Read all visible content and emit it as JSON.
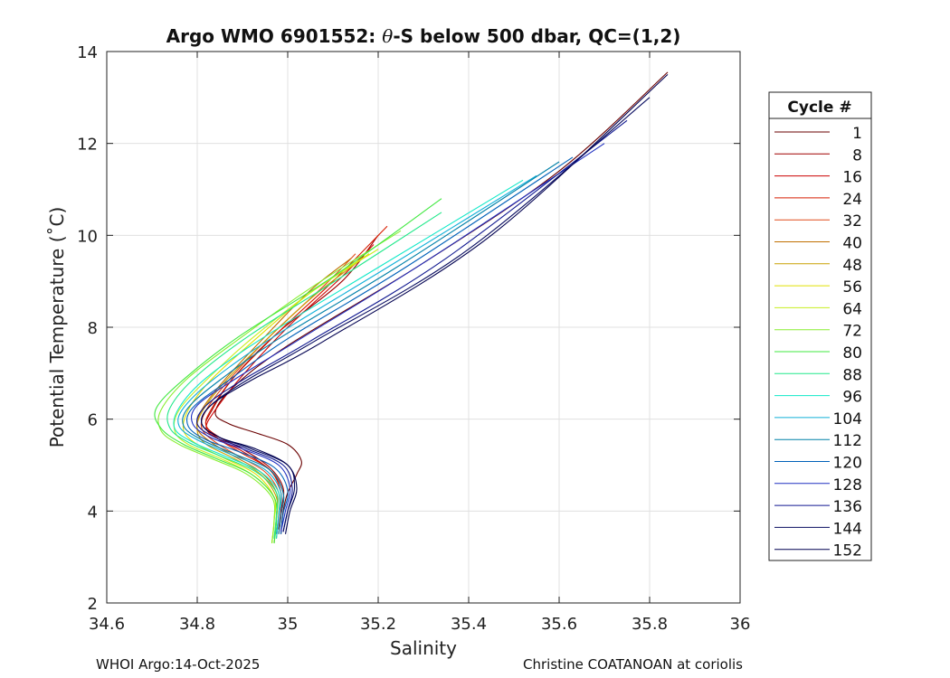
{
  "chart_data": {
    "type": "line",
    "title_prefix": "Argo WMO 6901552: ",
    "title_theta": "θ",
    "title_suffix": "-S below 500 dbar,  QC=(1,2)",
    "xlabel": "Salinity",
    "ylabel": "Potential Temperature (˚C)",
    "xlim": [
      34.6,
      36
    ],
    "ylim": [
      2,
      14
    ],
    "xticks": [
      34.6,
      34.8,
      35,
      35.2,
      35.4,
      35.6,
      35.8,
      36
    ],
    "xtick_labels": [
      "34.6",
      "34.8",
      "35",
      "35.2",
      "35.4",
      "35.6",
      "35.8",
      "36"
    ],
    "yticks": [
      2,
      4,
      6,
      8,
      10,
      12,
      14
    ],
    "ytick_labels": [
      "2",
      "4",
      "6",
      "8",
      "10",
      "12",
      "14"
    ],
    "grid": true,
    "legend_title": "Cycle #",
    "legend_position": "outside-right",
    "legend": [
      {
        "label": "1",
        "color": "#6a0000"
      },
      {
        "label": "8",
        "color": "#a00000"
      },
      {
        "label": "16",
        "color": "#cc0000"
      },
      {
        "label": "24",
        "color": "#d81c00"
      },
      {
        "label": "32",
        "color": "#e04a1a"
      },
      {
        "label": "40",
        "color": "#c07000"
      },
      {
        "label": "48",
        "color": "#c8a000"
      },
      {
        "label": "56",
        "color": "#e0e000"
      },
      {
        "label": "64",
        "color": "#c8ee20"
      },
      {
        "label": "72",
        "color": "#88ee30"
      },
      {
        "label": "80",
        "color": "#40e840"
      },
      {
        "label": "88",
        "color": "#20e88a"
      },
      {
        "label": "96",
        "color": "#10e8c8"
      },
      {
        "label": "104",
        "color": "#10b0d8"
      },
      {
        "label": "112",
        "color": "#0080a8"
      },
      {
        "label": "120",
        "color": "#0060b8"
      },
      {
        "label": "128",
        "color": "#2030c0"
      },
      {
        "label": "136",
        "color": "#101890"
      },
      {
        "label": "144",
        "color": "#080c60"
      },
      {
        "label": "152",
        "color": "#000050"
      }
    ],
    "series": [
      {
        "name": "1",
        "color": "#6a0000",
        "s": [
          34.985,
          34.99,
          35.0,
          35.02,
          35.03,
          35.0,
          34.93,
          34.87,
          34.84,
          34.88,
          35.0,
          35.3,
          35.6,
          35.84
        ],
        "t": [
          3.5,
          4.0,
          4.4,
          4.8,
          5.1,
          5.45,
          5.7,
          5.9,
          6.15,
          6.7,
          7.6,
          9.4,
          11.4,
          13.55
        ]
      },
      {
        "name": "8",
        "color": "#a00000",
        "s": [
          34.98,
          34.985,
          34.99,
          34.96,
          34.9,
          34.85,
          34.82,
          34.83,
          34.88,
          34.98,
          35.12,
          35.2
        ],
        "t": [
          3.6,
          4.0,
          4.5,
          4.95,
          5.35,
          5.6,
          5.85,
          6.15,
          6.9,
          7.9,
          9.0,
          10.0
        ]
      },
      {
        "name": "16",
        "color": "#cc0000",
        "s": [
          34.98,
          34.985,
          34.99,
          34.96,
          34.9,
          34.85,
          34.82,
          34.84,
          34.9,
          35.0,
          35.12,
          35.19
        ],
        "t": [
          3.5,
          3.9,
          4.4,
          4.9,
          5.3,
          5.55,
          5.8,
          6.2,
          6.95,
          8.0,
          9.1,
          9.8
        ]
      },
      {
        "name": "24",
        "color": "#d81c00",
        "s": [
          34.975,
          34.98,
          34.985,
          34.96,
          34.9,
          34.85,
          34.82,
          34.83,
          34.88,
          34.98,
          35.1,
          35.22
        ],
        "t": [
          3.5,
          3.9,
          4.4,
          4.9,
          5.25,
          5.55,
          5.85,
          6.2,
          6.9,
          7.9,
          9.0,
          10.2
        ]
      },
      {
        "name": "32",
        "color": "#e04a1a",
        "s": [
          34.975,
          34.98,
          34.98,
          34.95,
          34.89,
          34.84,
          34.81,
          34.82,
          34.87,
          34.96,
          35.08,
          35.15
        ],
        "t": [
          3.4,
          3.9,
          4.4,
          4.85,
          5.2,
          5.5,
          5.8,
          6.2,
          6.85,
          7.8,
          8.9,
          9.6
        ]
      },
      {
        "name": "40",
        "color": "#c07000",
        "s": [
          34.97,
          34.975,
          34.975,
          34.94,
          34.88,
          34.83,
          34.8,
          34.81,
          34.86,
          34.95,
          35.05,
          35.14
        ],
        "t": [
          3.4,
          3.9,
          4.4,
          4.85,
          5.2,
          5.5,
          5.8,
          6.2,
          6.85,
          7.8,
          8.8,
          9.5
        ]
      },
      {
        "name": "48",
        "color": "#c8a000",
        "s": [
          34.97,
          34.975,
          34.975,
          34.94,
          34.88,
          34.82,
          34.8,
          34.81,
          34.86,
          34.95,
          35.06,
          35.18
        ],
        "t": [
          3.3,
          3.8,
          4.3,
          4.8,
          5.15,
          5.45,
          5.75,
          6.15,
          6.8,
          7.7,
          8.7,
          9.6
        ]
      },
      {
        "name": "56",
        "color": "#e0e000",
        "s": [
          34.965,
          34.97,
          34.97,
          34.93,
          34.86,
          34.8,
          34.77,
          34.78,
          34.83,
          34.93,
          35.05,
          35.18
        ],
        "t": [
          3.3,
          3.8,
          4.3,
          4.8,
          5.15,
          5.45,
          5.75,
          6.2,
          6.85,
          7.75,
          8.75,
          9.6
        ]
      },
      {
        "name": "64",
        "color": "#c8ee20",
        "s": [
          34.965,
          34.97,
          34.97,
          34.92,
          34.85,
          34.78,
          34.75,
          34.76,
          34.82,
          34.92,
          35.05,
          35.2
        ],
        "t": [
          3.3,
          3.8,
          4.3,
          4.8,
          5.15,
          5.45,
          5.75,
          6.2,
          6.85,
          7.75,
          8.75,
          9.7
        ]
      },
      {
        "name": "72",
        "color": "#88ee30",
        "s": [
          34.965,
          34.97,
          34.965,
          34.91,
          34.83,
          34.76,
          34.72,
          34.72,
          34.78,
          34.9,
          35.05,
          35.25
        ],
        "t": [
          3.3,
          3.8,
          4.3,
          4.8,
          5.15,
          5.45,
          5.75,
          6.2,
          6.9,
          7.8,
          8.85,
          10.1
        ]
      },
      {
        "name": "80",
        "color": "#40e840",
        "s": [
          34.97,
          34.975,
          34.97,
          34.92,
          34.84,
          34.77,
          34.72,
          34.71,
          34.78,
          34.9,
          35.1,
          35.34
        ],
        "t": [
          3.3,
          3.8,
          4.3,
          4.8,
          5.15,
          5.45,
          5.8,
          6.25,
          6.95,
          7.85,
          9.1,
          10.8
        ]
      },
      {
        "name": "88",
        "color": "#20e88a",
        "s": [
          34.97,
          34.975,
          34.975,
          34.93,
          34.85,
          34.78,
          34.74,
          34.74,
          34.8,
          34.92,
          35.12,
          35.34
        ],
        "t": [
          3.4,
          3.9,
          4.4,
          4.85,
          5.2,
          5.5,
          5.8,
          6.25,
          6.95,
          7.85,
          9.1,
          10.5
        ]
      },
      {
        "name": "96",
        "color": "#10e8c8",
        "s": [
          34.975,
          34.98,
          34.98,
          34.94,
          34.86,
          34.79,
          34.75,
          34.76,
          34.82,
          34.95,
          35.2,
          35.52
        ],
        "t": [
          3.4,
          3.9,
          4.4,
          4.85,
          5.2,
          5.5,
          5.8,
          6.25,
          6.9,
          7.8,
          9.3,
          11.2
        ]
      },
      {
        "name": "104",
        "color": "#10b0d8",
        "s": [
          34.975,
          34.98,
          34.985,
          34.95,
          34.87,
          34.8,
          34.76,
          34.77,
          34.84,
          34.97,
          35.22,
          35.55
        ],
        "t": [
          3.5,
          3.9,
          4.4,
          4.9,
          5.25,
          5.55,
          5.85,
          6.25,
          6.9,
          7.8,
          9.3,
          11.3
        ]
      },
      {
        "name": "112",
        "color": "#0080a8",
        "s": [
          34.98,
          34.985,
          34.99,
          34.96,
          34.88,
          34.81,
          34.77,
          34.78,
          34.85,
          34.98,
          35.24,
          35.6
        ],
        "t": [
          3.5,
          3.9,
          4.4,
          4.9,
          5.25,
          5.55,
          5.85,
          6.25,
          6.85,
          7.75,
          9.3,
          11.6
        ]
      },
      {
        "name": "120",
        "color": "#0060b8",
        "s": [
          34.985,
          34.99,
          35.0,
          34.97,
          34.89,
          34.82,
          34.78,
          34.79,
          34.87,
          35.0,
          35.26,
          35.63
        ],
        "t": [
          3.5,
          3.95,
          4.45,
          4.95,
          5.3,
          5.55,
          5.85,
          6.25,
          6.85,
          7.75,
          9.3,
          11.7
        ]
      },
      {
        "name": "128",
        "color": "#2030c0",
        "s": [
          34.985,
          34.995,
          35.005,
          34.98,
          34.9,
          34.83,
          34.79,
          34.8,
          34.88,
          35.02,
          35.3,
          35.7
        ],
        "t": [
          3.55,
          4.0,
          4.5,
          5.0,
          5.35,
          5.6,
          5.9,
          6.3,
          6.85,
          7.7,
          9.4,
          12.0
        ]
      },
      {
        "name": "136",
        "color": "#101890",
        "s": [
          34.99,
          35.0,
          35.01,
          34.99,
          34.91,
          34.84,
          34.8,
          34.82,
          34.9,
          35.05,
          35.35,
          35.75
        ],
        "t": [
          3.55,
          4.0,
          4.5,
          5.0,
          5.35,
          5.6,
          5.9,
          6.3,
          6.85,
          7.7,
          9.5,
          12.5
        ]
      },
      {
        "name": "144",
        "color": "#080c60",
        "s": [
          34.99,
          35.0,
          35.015,
          35.0,
          34.92,
          34.85,
          34.81,
          34.83,
          34.91,
          35.06,
          35.4,
          35.8
        ],
        "t": [
          3.55,
          4.0,
          4.5,
          5.0,
          5.35,
          5.6,
          5.9,
          6.3,
          6.85,
          7.7,
          9.7,
          13.0
        ]
      },
      {
        "name": "152",
        "color": "#000050",
        "s": [
          34.995,
          35.005,
          35.02,
          35.0,
          34.93,
          34.85,
          34.81,
          34.83,
          34.92,
          35.08,
          35.45,
          35.84
        ],
        "t": [
          3.5,
          4.0,
          4.5,
          5.0,
          5.35,
          5.6,
          5.9,
          6.3,
          6.85,
          7.7,
          10.0,
          13.5
        ]
      }
    ]
  },
  "footer": {
    "left": "WHOI Argo:14-Oct-2025",
    "right": "Christine COATANOAN at coriolis"
  }
}
